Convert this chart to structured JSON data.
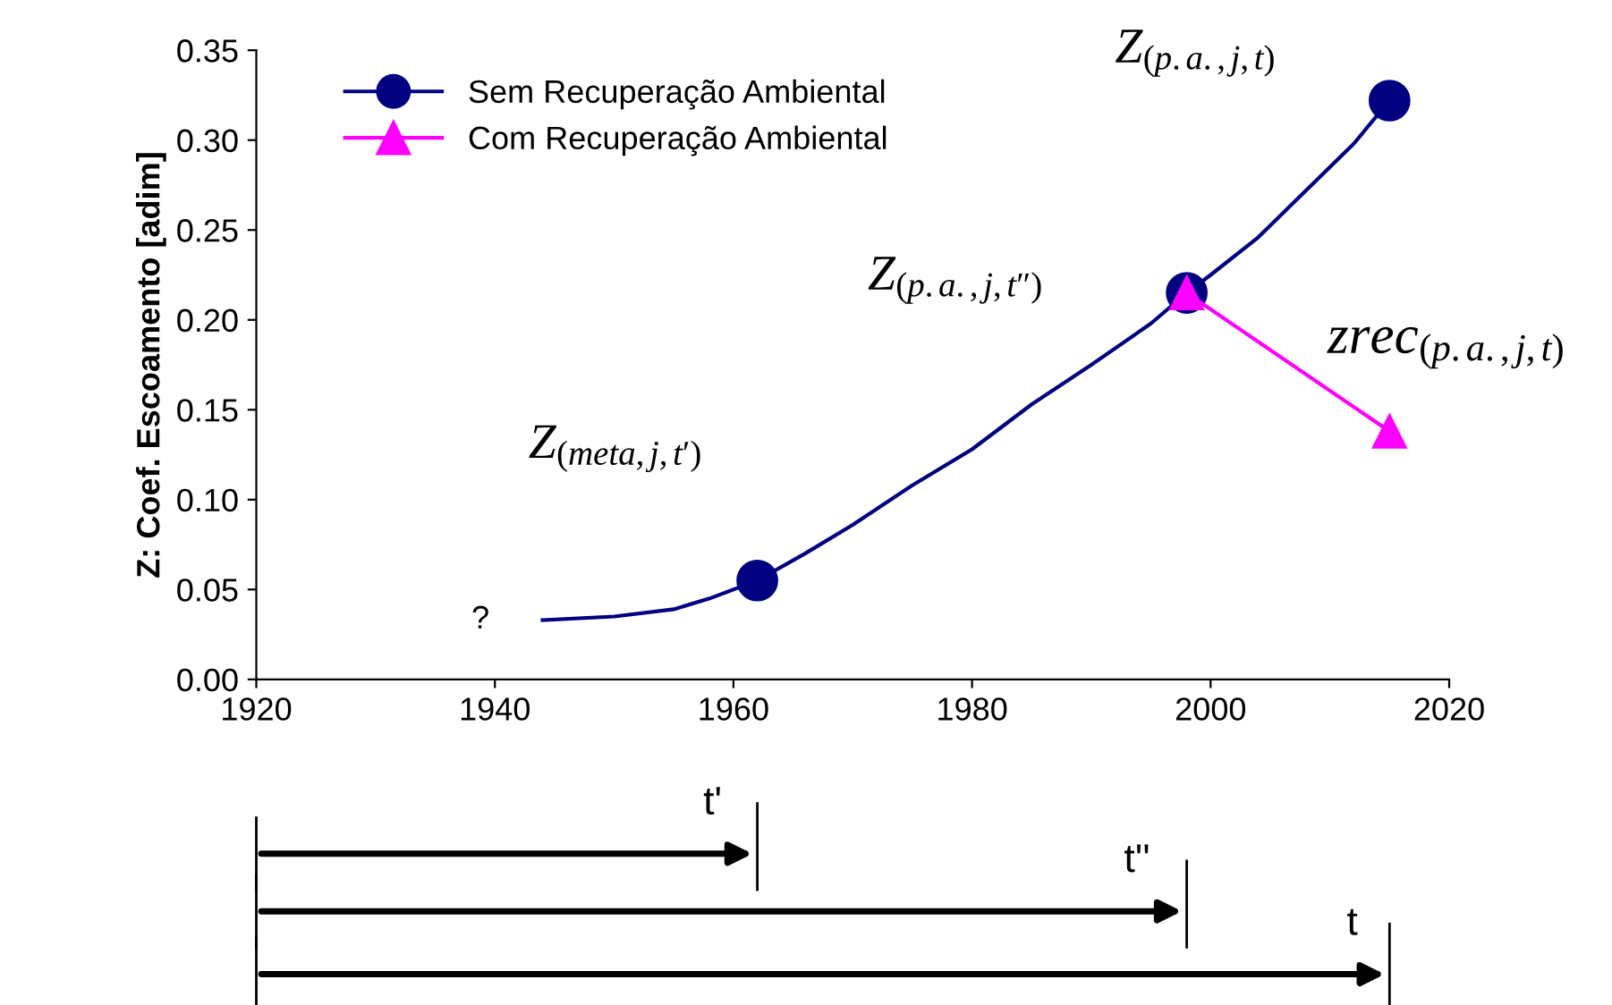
{
  "chart_data": {
    "type": "line",
    "ylabel": "Z: Coef. Escoamento [adim]",
    "xlim": [
      1920,
      2020
    ],
    "xticks": [
      1920,
      1940,
      1960,
      1980,
      2000,
      2020
    ],
    "ylim": [
      0,
      0.35
    ],
    "yticks": [
      {
        "value": 0,
        "label": "0.00"
      },
      {
        "value": 0.05,
        "label": "0.05"
      },
      {
        "value": 0.1,
        "label": "0.10"
      },
      {
        "value": 0.15,
        "label": "0.15"
      },
      {
        "value": 0.2,
        "label": "0.20"
      },
      {
        "value": 0.25,
        "label": "0.25"
      },
      {
        "value": 0.3,
        "label": "0.30"
      },
      {
        "value": 0.35,
        "label": "0.35"
      }
    ],
    "grid": false,
    "legend": "top left",
    "series": [
      {
        "color": "#000080",
        "marker": "none",
        "x": [
          1944,
          1950,
          1955,
          1958,
          1962,
          1966,
          1970,
          1975,
          1980,
          1985,
          1990,
          1995,
          1998,
          2000,
          2004,
          2008,
          2012,
          2015
        ],
        "values": [
          0.033,
          0.035,
          0.039,
          0.045,
          0.055,
          0.07,
          0.086,
          0.108,
          0.128,
          0.153,
          0.175,
          0.198,
          0.215,
          0.225,
          0.246,
          0.272,
          0.298,
          0.322
        ]
      },
      {
        "type": "scatter",
        "name": "Sem Recuperação Ambiental",
        "color": "#000080",
        "marker": "circle",
        "x": [
          1962,
          1998,
          2015
        ],
        "values": [
          0.055,
          0.215,
          0.322
        ]
      },
      {
        "type": "line",
        "name": "Com Recuperação Ambiental",
        "color": "#ff00ff",
        "marker": "triangle",
        "x": [
          1998,
          2015
        ],
        "values": [
          0.215,
          0.138
        ]
      }
    ],
    "annotations": [
      "?",
      {
        "text": "Z$_{(meta,j,t′)}$",
        "x": 1962,
        "y": 0.055
      },
      {
        "text": "Z$_{(p.a.,j,t″)}$",
        "x": 1998,
        "y": 0.215
      },
      {
        "text": "Z$_{(p.a.,j,t)}$",
        "x": 2015,
        "y": 0.322
      },
      {
        "text": "zrec$_{(p.a.,j,t)}$",
        "x": 2015,
        "y": 0.138
      },
      "t'",
      "t''",
      "t"
    ]
  }
}
